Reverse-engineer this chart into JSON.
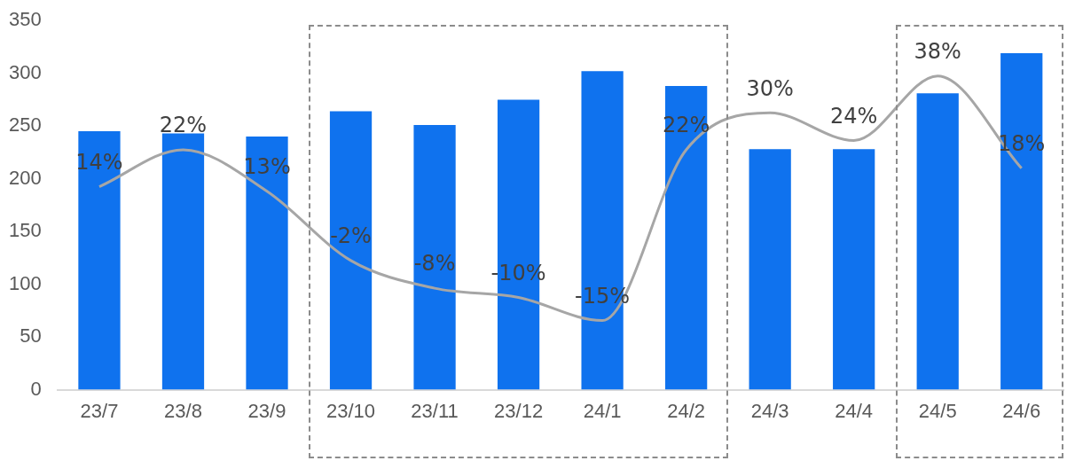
{
  "chart_data": {
    "type": "bar",
    "categories": [
      "23/7",
      "23/8",
      "23/9",
      "23/10",
      "23/11",
      "23/12",
      "24/1",
      "24/2",
      "24/3",
      "24/4",
      "24/5",
      "24/6"
    ],
    "series": [
      {
        "color": "#0f72ee",
        "values": [
          245,
          243,
          240,
          264,
          251,
          275,
          302,
          288,
          228,
          228,
          281,
          319
        ]
      },
      {
        "type": "line",
        "axis": "y2",
        "color": "#a6a6a6",
        "values": [
          14,
          22,
          13,
          -2,
          -8,
          -10,
          -15,
          22,
          30,
          24,
          38,
          18
        ],
        "value_labels": [
          "14%",
          "22%",
          "13%",
          "-2%",
          "-8%",
          "-10%",
          "-15%",
          "22%",
          "30%",
          "24%",
          "38%",
          "18%"
        ]
      }
    ],
    "ylim": [
      0,
      350
    ],
    "yticks": [
      0,
      50,
      100,
      150,
      200,
      250,
      300,
      350
    ],
    "tick_labels": "xy",
    "grid": false,
    "legend": false,
    "marker": "none"
  }
}
